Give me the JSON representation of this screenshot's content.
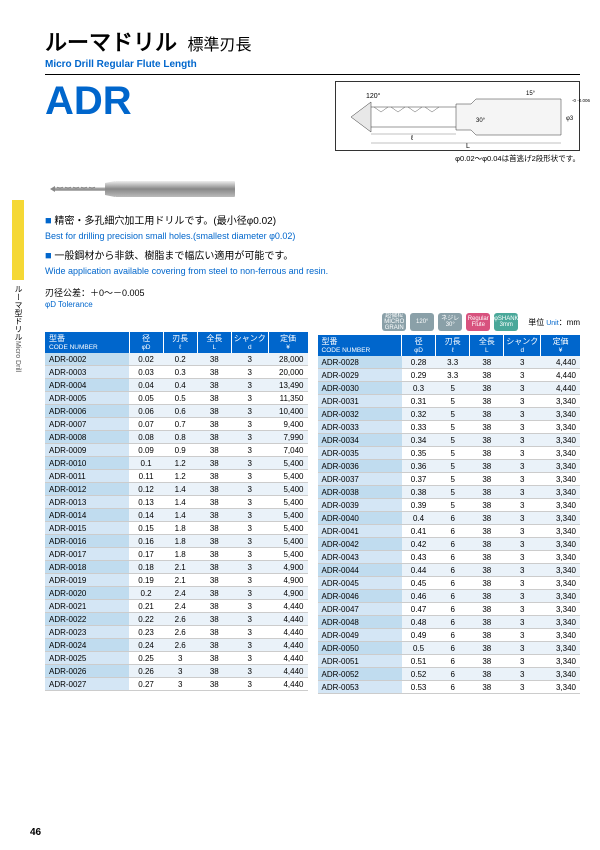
{
  "side": {
    "jp": "ルーマ型ドリル",
    "en": "Micro Drill"
  },
  "title": {
    "jp_main": "ルーマドリル",
    "jp_sub": "標準刃長",
    "en": "Micro Drill Regular Flute Length",
    "code": "ADR"
  },
  "diagram": {
    "angle_tip": "120°",
    "label_l": "ℓ",
    "label_L": "L",
    "angle_30": "30°",
    "angle_15": "15°",
    "phi_d": "φ3",
    "tol": "-0\n-0.006",
    "note": "φ0.02～φ0.04は首逃げ2段形状です。"
  },
  "bullets": [
    {
      "jp": "精密・多孔細穴加工用ドリルです。(最小径φ0.02)",
      "en": "Best for drilling precision small holes.(smallest diameter φ0.02)"
    },
    {
      "jp": "一般鋼材から非鉄、樹脂まで幅広い適用が可能です。",
      "en": "Wide application available covering from steel to non-ferrous and resin."
    }
  ],
  "tolerance": {
    "jp": "刃径公差：＋0～－0.005",
    "en": "φD Tolerance"
  },
  "badges": [
    {
      "label": "超微粒\nMICRO\nGRAIN",
      "bg": "#8aa0a8"
    },
    {
      "label": "120°",
      "bg": "#8aa0a8"
    },
    {
      "label": "ネジレ\n30°",
      "bg": "#8aa0a8"
    },
    {
      "label": "Regular\nFlute",
      "bg": "#d8527e"
    },
    {
      "label": "φSHANK\n3mm",
      "bg": "#4aa89a"
    }
  ],
  "unit": {
    "jp": "単位",
    "en": "Unit",
    "val": "：mm"
  },
  "headers": [
    {
      "jp": "型番",
      "en": "CODE NUMBER"
    },
    {
      "jp": "径",
      "en": "φD"
    },
    {
      "jp": "刃長",
      "en": "ℓ"
    },
    {
      "jp": "全長",
      "en": "L"
    },
    {
      "jp": "シャンク",
      "en": "d"
    },
    {
      "jp": "定価",
      "en": "¥"
    }
  ],
  "left_rows": [
    [
      "ADR-0002",
      "0.02",
      "0.2",
      "38",
      "3",
      "28,000"
    ],
    [
      "ADR-0003",
      "0.03",
      "0.3",
      "38",
      "3",
      "20,000"
    ],
    [
      "ADR-0004",
      "0.04",
      "0.4",
      "38",
      "3",
      "13,490"
    ],
    [
      "ADR-0005",
      "0.05",
      "0.5",
      "38",
      "3",
      "11,350"
    ],
    [
      "ADR-0006",
      "0.06",
      "0.6",
      "38",
      "3",
      "10,400"
    ],
    [
      "ADR-0007",
      "0.07",
      "0.7",
      "38",
      "3",
      "9,400"
    ],
    [
      "ADR-0008",
      "0.08",
      "0.8",
      "38",
      "3",
      "7,990"
    ],
    [
      "ADR-0009",
      "0.09",
      "0.9",
      "38",
      "3",
      "7,040"
    ],
    [
      "ADR-0010",
      "0.1",
      "1.2",
      "38",
      "3",
      "5,400"
    ],
    [
      "ADR-0011",
      "0.11",
      "1.2",
      "38",
      "3",
      "5,400"
    ],
    [
      "ADR-0012",
      "0.12",
      "1.4",
      "38",
      "3",
      "5,400"
    ],
    [
      "ADR-0013",
      "0.13",
      "1.4",
      "38",
      "3",
      "5,400"
    ],
    [
      "ADR-0014",
      "0.14",
      "1.4",
      "38",
      "3",
      "5,400"
    ],
    [
      "ADR-0015",
      "0.15",
      "1.8",
      "38",
      "3",
      "5,400"
    ],
    [
      "ADR-0016",
      "0.16",
      "1.8",
      "38",
      "3",
      "5,400"
    ],
    [
      "ADR-0017",
      "0.17",
      "1.8",
      "38",
      "3",
      "5,400"
    ],
    [
      "ADR-0018",
      "0.18",
      "2.1",
      "38",
      "3",
      "4,900"
    ],
    [
      "ADR-0019",
      "0.19",
      "2.1",
      "38",
      "3",
      "4,900"
    ],
    [
      "ADR-0020",
      "0.2",
      "2.4",
      "38",
      "3",
      "4,900"
    ],
    [
      "ADR-0021",
      "0.21",
      "2.4",
      "38",
      "3",
      "4,440"
    ],
    [
      "ADR-0022",
      "0.22",
      "2.6",
      "38",
      "3",
      "4,440"
    ],
    [
      "ADR-0023",
      "0.23",
      "2.6",
      "38",
      "3",
      "4,440"
    ],
    [
      "ADR-0024",
      "0.24",
      "2.6",
      "38",
      "3",
      "4,440"
    ],
    [
      "ADR-0025",
      "0.25",
      "3",
      "38",
      "3",
      "4,440"
    ],
    [
      "ADR-0026",
      "0.26",
      "3",
      "38",
      "3",
      "4,440"
    ],
    [
      "ADR-0027",
      "0.27",
      "3",
      "38",
      "3",
      "4,440"
    ]
  ],
  "right_rows": [
    [
      "ADR-0028",
      "0.28",
      "3.3",
      "38",
      "3",
      "4,440"
    ],
    [
      "ADR-0029",
      "0.29",
      "3.3",
      "38",
      "3",
      "4,440"
    ],
    [
      "ADR-0030",
      "0.3",
      "5",
      "38",
      "3",
      "4,440"
    ],
    [
      "ADR-0031",
      "0.31",
      "5",
      "38",
      "3",
      "3,340"
    ],
    [
      "ADR-0032",
      "0.32",
      "5",
      "38",
      "3",
      "3,340"
    ],
    [
      "ADR-0033",
      "0.33",
      "5",
      "38",
      "3",
      "3,340"
    ],
    [
      "ADR-0034",
      "0.34",
      "5",
      "38",
      "3",
      "3,340"
    ],
    [
      "ADR-0035",
      "0.35",
      "5",
      "38",
      "3",
      "3,340"
    ],
    [
      "ADR-0036",
      "0.36",
      "5",
      "38",
      "3",
      "3,340"
    ],
    [
      "ADR-0037",
      "0.37",
      "5",
      "38",
      "3",
      "3,340"
    ],
    [
      "ADR-0038",
      "0.38",
      "5",
      "38",
      "3",
      "3,340"
    ],
    [
      "ADR-0039",
      "0.39",
      "5",
      "38",
      "3",
      "3,340"
    ],
    [
      "ADR-0040",
      "0.4",
      "6",
      "38",
      "3",
      "3,340"
    ],
    [
      "ADR-0041",
      "0.41",
      "6",
      "38",
      "3",
      "3,340"
    ],
    [
      "ADR-0042",
      "0.42",
      "6",
      "38",
      "3",
      "3,340"
    ],
    [
      "ADR-0043",
      "0.43",
      "6",
      "38",
      "3",
      "3,340"
    ],
    [
      "ADR-0044",
      "0.44",
      "6",
      "38",
      "3",
      "3,340"
    ],
    [
      "ADR-0045",
      "0.45",
      "6",
      "38",
      "3",
      "3,340"
    ],
    [
      "ADR-0046",
      "0.46",
      "6",
      "38",
      "3",
      "3,340"
    ],
    [
      "ADR-0047",
      "0.47",
      "6",
      "38",
      "3",
      "3,340"
    ],
    [
      "ADR-0048",
      "0.48",
      "6",
      "38",
      "3",
      "3,340"
    ],
    [
      "ADR-0049",
      "0.49",
      "6",
      "38",
      "3",
      "3,340"
    ],
    [
      "ADR-0050",
      "0.5",
      "6",
      "38",
      "3",
      "3,340"
    ],
    [
      "ADR-0051",
      "0.51",
      "6",
      "38",
      "3",
      "3,340"
    ],
    [
      "ADR-0052",
      "0.52",
      "6",
      "38",
      "3",
      "3,340"
    ],
    [
      "ADR-0053",
      "0.53",
      "6",
      "38",
      "3",
      "3,340"
    ]
  ],
  "page_number": "46",
  "col_widths": [
    "32%",
    "13%",
    "13%",
    "13%",
    "14%",
    "15%"
  ]
}
